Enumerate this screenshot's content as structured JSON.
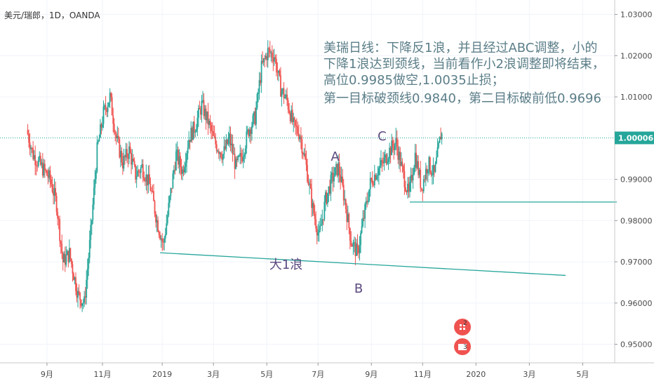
{
  "chart_data": {
    "type": "candlestick",
    "symbol": "美元/瑞郎，1D，OANDA",
    "last_price": "1.00006",
    "yaxis": {
      "range": [
        0.9455,
        1.0335
      ],
      "ticks": [
        "1.03000",
        "1.02000",
        "1.01000",
        "0.99000",
        "0.98000",
        "0.97000",
        "0.96000",
        "0.95000"
      ],
      "tick_values": [
        1.03,
        1.02,
        1.01,
        0.99,
        0.98,
        0.97,
        0.96,
        0.95
      ]
    },
    "xaxis": {
      "ticks": [
        {
          "label": "9月",
          "x": 9
        },
        {
          "label": "11月",
          "x": 35
        },
        {
          "label": "2019",
          "x": 63
        },
        {
          "label": "3月",
          "x": 87
        },
        {
          "label": "5月",
          "x": 112
        },
        {
          "label": "7月",
          "x": 136
        },
        {
          "label": "9月",
          "x": 161
        },
        {
          "label": "11月",
          "x": 185
        },
        {
          "label": "2020",
          "x": 210
        },
        {
          "label": "3月",
          "x": 235
        },
        {
          "label": "5月",
          "x": 260
        }
      ],
      "range": [
        -13,
        275
      ]
    },
    "anchors": [
      [
        0,
        1.002
      ],
      [
        3,
        0.996
      ],
      [
        7,
        0.993
      ],
      [
        11,
        0.99
      ],
      [
        14,
        0.984
      ],
      [
        17,
        0.97
      ],
      [
        20,
        0.972
      ],
      [
        24,
        0.962
      ],
      [
        27,
        0.96
      ],
      [
        30,
        0.977
      ],
      [
        33,
        0.997
      ],
      [
        36,
        1.006
      ],
      [
        39,
        1.01
      ],
      [
        42,
        1.0
      ],
      [
        45,
        0.994
      ],
      [
        48,
        0.997
      ],
      [
        51,
        0.991
      ],
      [
        54,
        0.993
      ],
      [
        58,
        0.988
      ],
      [
        61,
        0.98
      ],
      [
        64,
        0.974
      ],
      [
        67,
        0.985
      ],
      [
        70,
        0.996
      ],
      [
        73,
        0.992
      ],
      [
        76,
        1.0
      ],
      [
        79,
        1.003
      ],
      [
        82,
        1.008
      ],
      [
        85,
        1.004
      ],
      [
        88,
        0.999
      ],
      [
        92,
        0.996
      ],
      [
        95,
        1.0
      ],
      [
        98,
        0.993
      ],
      [
        101,
        0.996
      ],
      [
        104,
        1.002
      ],
      [
        107,
        1.005
      ],
      [
        110,
        1.017
      ],
      [
        113,
        1.021
      ],
      [
        116,
        1.02
      ],
      [
        119,
        1.012
      ],
      [
        122,
        1.009
      ],
      [
        125,
        1.003
      ],
      [
        128,
        1.001
      ],
      [
        131,
        0.993
      ],
      [
        134,
        0.983
      ],
      [
        137,
        0.976
      ],
      [
        140,
        0.985
      ],
      [
        143,
        0.99
      ],
      [
        146,
        0.993
      ],
      [
        149,
        0.985
      ],
      [
        152,
        0.975
      ],
      [
        155,
        0.972
      ],
      [
        158,
        0.981
      ],
      [
        161,
        0.989
      ],
      [
        164,
        0.992
      ],
      [
        167,
        0.994
      ],
      [
        170,
        0.997
      ],
      [
        173,
        0.999
      ],
      [
        176,
        0.992
      ],
      [
        179,
        0.986
      ],
      [
        182,
        0.996
      ],
      [
        185,
        0.988
      ],
      [
        188,
        0.994
      ],
      [
        191,
        0.991
      ],
      [
        194,
        1.0008
      ]
    ],
    "trendlines": [
      {
        "name": "neckline",
        "from": [
          62,
          0.9722
        ],
        "to": [
          252,
          0.9667
        ]
      },
      {
        "name": "support",
        "from": [
          179,
          0.9845
        ],
        "to": [
          276,
          0.9845
        ]
      }
    ],
    "wave_labels": [
      {
        "text": "A",
        "x": 144,
        "y": 0.9945
      },
      {
        "text": "B",
        "x": 155,
        "y": 0.9625
      },
      {
        "text": "C",
        "x": 166,
        "y": 0.9995
      },
      {
        "text": "大1浪",
        "x": 121,
        "y": 0.9683
      }
    ],
    "annotation_lines": [
      "美瑞日线：下降反1浪，并且经过ABC调整，小的",
      "下降1浪达到颈线，当前看作小2浪调整即将结束，",
      "高位0.9985做空,1.0035止损；",
      "第一目标破颈线0.9840，第二目标破前低0.9696"
    ],
    "colors": {
      "up": "#26a69a",
      "down": "#ef5350",
      "text_annotation": "#5b7e88",
      "wave_label": "#5b4a7e",
      "price_line": "#26a69a"
    }
  }
}
